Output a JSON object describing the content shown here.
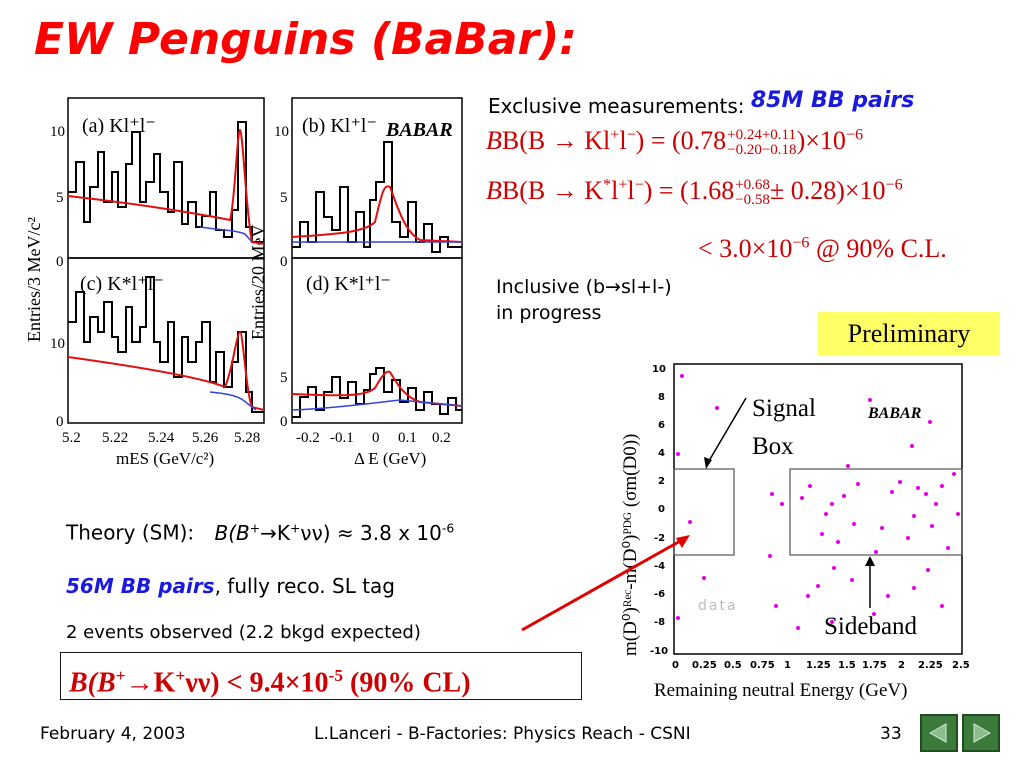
{
  "title": "EW Penguins (BaBar):",
  "exclusive": {
    "label": "Exclusive measurements:",
    "pairs": "85M BB pairs",
    "eq1": {
      "lhs_prefix": "B(B → Kl",
      "lhs_sup1": "+",
      "lhs_mid": "l",
      "lhs_sup2": "−",
      "rhs_prefix": ") = (0.78",
      "err_up": "+0.24+0.11",
      "err_down": "−0.20−0.18",
      "rhs_suffix": ")×10",
      "exp": "−6"
    },
    "eq2": {
      "lhs_prefix": "B(B → K",
      "lhs_sup0": "*",
      "lhs_mid": "l",
      "lhs_sup1": "+",
      "lhs_mid2": "l",
      "lhs_sup2": "−",
      "rhs_prefix": ") = (1.68",
      "err_up": "+0.68",
      "err_down": "−0.58",
      "rhs_suffix": "± 0.28)×10",
      "exp": "−6"
    },
    "eq3": {
      "prefix": "< 3.0×10",
      "exp": "−6",
      "suffix": " @ 90% C.L."
    }
  },
  "inclusive": {
    "line1": "Inclusive (b→sl+l-)",
    "line2": "in progress"
  },
  "preliminary": "Preliminary",
  "theory": {
    "label": "Theory (SM):",
    "process": "B(B",
    "sup1": "+",
    "arrow": "→K",
    "sup2": "+",
    "rest": "νν) ≈ 3.8 x 10",
    "exp": "-6"
  },
  "pairs56": {
    "italic": "56M BB pairs",
    "rest": ", fully reco. SL tag"
  },
  "events": "2 events observed  (2.2 bkgd expected)",
  "result": {
    "a": "B(B",
    "sup1": "+",
    "b": "→K",
    "sup2": "+",
    "c": "νν) < 9.4×10",
    "exp": "-5",
    "d": " (90% CL)"
  },
  "left_plots": {
    "ylabel_top": "Entries/3 MeV/c²",
    "ylabel_bottom": "Entries/20 MeV",
    "panels": {
      "a": "(a) Kl⁺l⁻",
      "b": "(b) Kl⁺l⁻",
      "c": "(c) K*l⁺l⁻",
      "d": "(d) K*l⁺l⁻"
    },
    "babar_logo": "BABAR",
    "xticks_left": [
      "5.2",
      "5.22",
      "5.24",
      "5.26",
      "5.28"
    ],
    "xlabel_left": "mES (GeV/c²)",
    "xticks_right": [
      "-0.2",
      "-0.1",
      "0",
      "0.1",
      "0.2"
    ],
    "xlabel_right": "Δ E (GeV)",
    "yticks": [
      "10",
      "5",
      "0"
    ]
  },
  "scatter": {
    "ylabel": "m(D⁰)ᴿᵉᶜ-m(D⁰)ᴾᴰᴳ  (σm(D0))",
    "xlabel": "Remaining neutral Energy (GeV)",
    "xticks": [
      "0",
      "0.25",
      "0.5",
      "0.75",
      "1",
      "1.25",
      "1.5",
      "1.75",
      "2",
      "2.25",
      "2.5"
    ],
    "yticks": [
      "10",
      "8",
      "6",
      "4",
      "2",
      "0",
      "-2",
      "-4",
      "-6",
      "-8",
      "-10"
    ],
    "signal_box_label": [
      "Signal",
      "Box"
    ],
    "sideband_label": "Sideband",
    "data_label": "data",
    "logo": "BABAR"
  },
  "footer": {
    "date": "February 4, 2003",
    "center": "L.Lanceri - B-Factories: Physics Reach - CSNI",
    "page": "33"
  },
  "colors": {
    "title": "#ff0000",
    "equation": "#cc0000",
    "blue": "#1a1adc",
    "prelim_bg": "#ffff66",
    "nav": "#3c7a3c",
    "points": "#e600e6"
  }
}
